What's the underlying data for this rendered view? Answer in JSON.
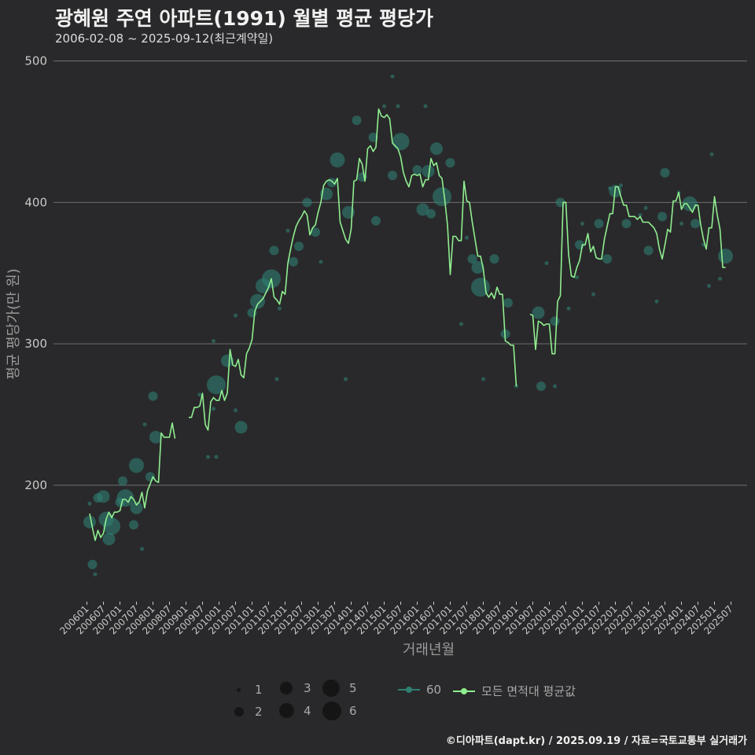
{
  "header": {
    "title": "광혜원 주연 아파트(1991) 월별 평균 평당가",
    "subtitle": "2006-02-08 ~ 2025-09-12(최근계약일)"
  },
  "caption": "©디아파트(dapt.kr) / 2025.09.19 / 자료=국토교통부 실거래가",
  "colors": {
    "background": "#29292b",
    "grid": "#6e6e6e",
    "line": "#90ee90",
    "bubble": "#2f7f72",
    "axis_text": "#c8c8c8"
  },
  "legend": {
    "size_label_1": "1",
    "size_label_2": "2",
    "size_label_3": "3",
    "size_label_4": "4",
    "size_label_5": "5",
    "size_label_6": "6",
    "series_60": "60",
    "series_all": "모든 면적대 평균값"
  },
  "chart_data": {
    "type": "line",
    "title": "광혜원 주연 아파트(1991) 월별 평균 평당가",
    "xlabel": "거래년월",
    "ylabel": "평균 평당가(만 원)",
    "ylim": [
      120,
      510
    ],
    "yticks": [
      200,
      300,
      400,
      500
    ],
    "grid": true,
    "x_start": "200601",
    "x_tick_labels": [
      "200601",
      "200607",
      "200701",
      "200707",
      "200801",
      "200807",
      "200901",
      "200907",
      "201001",
      "201007",
      "201101",
      "201107",
      "201201",
      "201207",
      "201301",
      "201307",
      "201401",
      "201407",
      "201501",
      "201507",
      "201601",
      "201607",
      "201701",
      "201707",
      "201801",
      "201807",
      "201901",
      "201907",
      "202001",
      "202007",
      "202101",
      "202107",
      "202201",
      "202207",
      "202301",
      "202307",
      "202401",
      "202407",
      "202501",
      "202507"
    ],
    "series": [
      {
        "name": "모든 면적대 평균값",
        "style": "line",
        "values": [
          null,
          180,
          170,
          161,
          168,
          163,
          166,
          176,
          181,
          177,
          181,
          181,
          182,
          190,
          190,
          188,
          192,
          190,
          186,
          188,
          195,
          184,
          196,
          201,
          206,
          203,
          202,
          237,
          234,
          234,
          234,
          244,
          233,
          null,
          null,
          null,
          null,
          248,
          248,
          255,
          255,
          256,
          265,
          243,
          239,
          259,
          262,
          260,
          260,
          267,
          260,
          265,
          296,
          285,
          284,
          289,
          278,
          276,
          293,
          297,
          303,
          323,
          328,
          330,
          332,
          336,
          340,
          346,
          333,
          331,
          328,
          337,
          335,
          357,
          367,
          376,
          383,
          387,
          390,
          394,
          391,
          377,
          382,
          384,
          393,
          400,
          412,
          415,
          416,
          415,
          413,
          417,
          386,
          380,
          374,
          371,
          381,
          415,
          416,
          431,
          427,
          415,
          438,
          440,
          436,
          439,
          466,
          461,
          460,
          462,
          459,
          442,
          440,
          438,
          432,
          421,
          415,
          411,
          419,
          420,
          419,
          420,
          411,
          416,
          416,
          431,
          426,
          428,
          419,
          417,
          402,
          384,
          349,
          376,
          376,
          373,
          373,
          415,
          401,
          400,
          386,
          374,
          362,
          362,
          353,
          336,
          333,
          336,
          332,
          340,
          335,
          335,
          302,
          301,
          299,
          299,
          270,
          null,
          null,
          null,
          null,
          321,
          320,
          296,
          316,
          315,
          313,
          314,
          314,
          293,
          293,
          330,
          334,
          400,
          400,
          363,
          348,
          347,
          354,
          359,
          370,
          370,
          378,
          365,
          369,
          361,
          360,
          360,
          374,
          383,
          392,
          392,
          411,
          411,
          404,
          398,
          398,
          390,
          390,
          390,
          388,
          390,
          386,
          386,
          386,
          384,
          382,
          378,
          367,
          360,
          370,
          381,
          379,
          401,
          401,
          407,
          395,
          399,
          399,
          396,
          393,
          398,
          398,
          384,
          374,
          367,
          382,
          382,
          404,
          391,
          381,
          354,
          354
        ]
      },
      {
        "name": "60",
        "style": "bubble",
        "points": [
          {
            "m": "200602",
            "v": 187,
            "c": 1
          },
          {
            "m": "200602",
            "v": 174,
            "c": 3
          },
          {
            "m": "200603",
            "v": 144,
            "c": 2
          },
          {
            "m": "200604",
            "v": 137,
            "c": 1
          },
          {
            "m": "200605",
            "v": 191,
            "c": 2
          },
          {
            "m": "200607",
            "v": 192,
            "c": 3
          },
          {
            "m": "200608",
            "v": 176,
            "c": 4
          },
          {
            "m": "200609",
            "v": 162,
            "c": 3
          },
          {
            "m": "200610",
            "v": 171,
            "c": 5
          },
          {
            "m": "200701",
            "v": 188,
            "c": 2
          },
          {
            "m": "200702",
            "v": 203,
            "c": 2
          },
          {
            "m": "200703",
            "v": 191,
            "c": 5
          },
          {
            "m": "200706",
            "v": 172,
            "c": 2
          },
          {
            "m": "200707",
            "v": 184,
            "c": 3
          },
          {
            "m": "200707",
            "v": 214,
            "c": 4
          },
          {
            "m": "200709",
            "v": 155,
            "c": 1
          },
          {
            "m": "200712",
            "v": 206,
            "c": 2
          },
          {
            "m": "200801",
            "v": 263,
            "c": 2
          },
          {
            "m": "200802",
            "v": 234,
            "c": 3
          },
          {
            "m": "200710",
            "v": 243,
            "c": 1
          },
          {
            "m": "200906",
            "v": 264,
            "c": 1
          },
          {
            "m": "200909",
            "v": 220,
            "c": 1
          },
          {
            "m": "200911",
            "v": 254,
            "c": 1
          },
          {
            "m": "200912",
            "v": 220,
            "c": 1
          },
          {
            "m": "200912",
            "v": 271,
            "c": 6
          },
          {
            "m": "200911",
            "v": 302,
            "c": 1
          },
          {
            "m": "201004",
            "v": 288,
            "c": 3
          },
          {
            "m": "201007",
            "v": 320,
            "c": 1
          },
          {
            "m": "201007",
            "v": 253,
            "c": 1
          },
          {
            "m": "201009",
            "v": 241,
            "c": 3
          },
          {
            "m": "201101",
            "v": 322,
            "c": 2
          },
          {
            "m": "201103",
            "v": 330,
            "c": 4
          },
          {
            "m": "201105",
            "v": 341,
            "c": 4
          },
          {
            "m": "201108",
            "v": 346,
            "c": 6
          },
          {
            "m": "201109",
            "v": 366,
            "c": 2
          },
          {
            "m": "201110",
            "v": 275,
            "c": 1
          },
          {
            "m": "201111",
            "v": 325,
            "c": 1
          },
          {
            "m": "201202",
            "v": 380,
            "c": 1
          },
          {
            "m": "201204",
            "v": 358,
            "c": 2
          },
          {
            "m": "201206",
            "v": 369,
            "c": 2
          },
          {
            "m": "201209",
            "v": 400,
            "c": 2
          },
          {
            "m": "201212",
            "v": 379,
            "c": 2
          },
          {
            "m": "201302",
            "v": 358,
            "c": 1
          },
          {
            "m": "201304",
            "v": 406,
            "c": 3
          },
          {
            "m": "201306",
            "v": 414,
            "c": 2
          },
          {
            "m": "201308",
            "v": 430,
            "c": 4
          },
          {
            "m": "201311",
            "v": 275,
            "c": 1
          },
          {
            "m": "201312",
            "v": 393,
            "c": 3
          },
          {
            "m": "201403",
            "v": 458,
            "c": 2
          },
          {
            "m": "201405",
            "v": 418,
            "c": 2
          },
          {
            "m": "201409",
            "v": 446,
            "c": 2
          },
          {
            "m": "201410",
            "v": 387,
            "c": 2
          },
          {
            "m": "201501",
            "v": 468,
            "c": 1
          },
          {
            "m": "201504",
            "v": 489,
            "c": 1
          },
          {
            "m": "201504",
            "v": 419,
            "c": 2
          },
          {
            "m": "201506",
            "v": 468,
            "c": 1
          },
          {
            "m": "201507",
            "v": 443,
            "c": 5
          },
          {
            "m": "201601",
            "v": 423,
            "c": 2
          },
          {
            "m": "201603",
            "v": 395,
            "c": 3
          },
          {
            "m": "201604",
            "v": 468,
            "c": 1
          },
          {
            "m": "201605",
            "v": 422,
            "c": 3
          },
          {
            "m": "201606",
            "v": 392,
            "c": 2
          },
          {
            "m": "201608",
            "v": 438,
            "c": 3
          },
          {
            "m": "201610",
            "v": 404,
            "c": 6
          },
          {
            "m": "201701",
            "v": 428,
            "c": 2
          },
          {
            "m": "201705",
            "v": 314,
            "c": 1
          },
          {
            "m": "201707",
            "v": 375,
            "c": 1
          },
          {
            "m": "201709",
            "v": 360,
            "c": 2
          },
          {
            "m": "201711",
            "v": 354,
            "c": 3
          },
          {
            "m": "201712",
            "v": 340,
            "c": 6
          },
          {
            "m": "201801",
            "v": 275,
            "c": 1
          },
          {
            "m": "201805",
            "v": 360,
            "c": 2
          },
          {
            "m": "201809",
            "v": 307,
            "c": 2
          },
          {
            "m": "201810",
            "v": 329,
            "c": 2
          },
          {
            "m": "201901",
            "v": 270,
            "c": 1
          },
          {
            "m": "201909",
            "v": 322,
            "c": 3
          },
          {
            "m": "201910",
            "v": 270,
            "c": 2
          },
          {
            "m": "201912",
            "v": 357,
            "c": 1
          },
          {
            "m": "202003",
            "v": 316,
            "c": 2
          },
          {
            "m": "202003",
            "v": 270,
            "c": 1
          },
          {
            "m": "202005",
            "v": 400,
            "c": 2
          },
          {
            "m": "202008",
            "v": 325,
            "c": 1
          },
          {
            "m": "202011",
            "v": 347,
            "c": 1
          },
          {
            "m": "202012",
            "v": 370,
            "c": 2
          },
          {
            "m": "202101",
            "v": 385,
            "c": 1
          },
          {
            "m": "202105",
            "v": 335,
            "c": 1
          },
          {
            "m": "202107",
            "v": 385,
            "c": 2
          },
          {
            "m": "202110",
            "v": 360,
            "c": 2
          },
          {
            "m": "202111",
            "v": 410,
            "c": 1
          },
          {
            "m": "202201",
            "v": 408,
            "c": 3
          },
          {
            "m": "202203",
            "v": 412,
            "c": 1
          },
          {
            "m": "202205",
            "v": 385,
            "c": 2
          },
          {
            "m": "202210",
            "v": 391,
            "c": 1
          },
          {
            "m": "202212",
            "v": 396,
            "c": 1
          },
          {
            "m": "202301",
            "v": 366,
            "c": 2
          },
          {
            "m": "202304",
            "v": 330,
            "c": 1
          },
          {
            "m": "202306",
            "v": 390,
            "c": 2
          },
          {
            "m": "202307",
            "v": 421,
            "c": 2
          },
          {
            "m": "202312",
            "v": 407,
            "c": 1
          },
          {
            "m": "202401",
            "v": 385,
            "c": 1
          },
          {
            "m": "202404",
            "v": 399,
            "c": 4
          },
          {
            "m": "202406",
            "v": 385,
            "c": 2
          },
          {
            "m": "202409",
            "v": 370,
            "c": 1
          },
          {
            "m": "202411",
            "v": 341,
            "c": 1
          },
          {
            "m": "202412",
            "v": 434,
            "c": 1
          },
          {
            "m": "202503",
            "v": 346,
            "c": 1
          },
          {
            "m": "202505",
            "v": 362,
            "c": 4
          }
        ]
      }
    ]
  }
}
